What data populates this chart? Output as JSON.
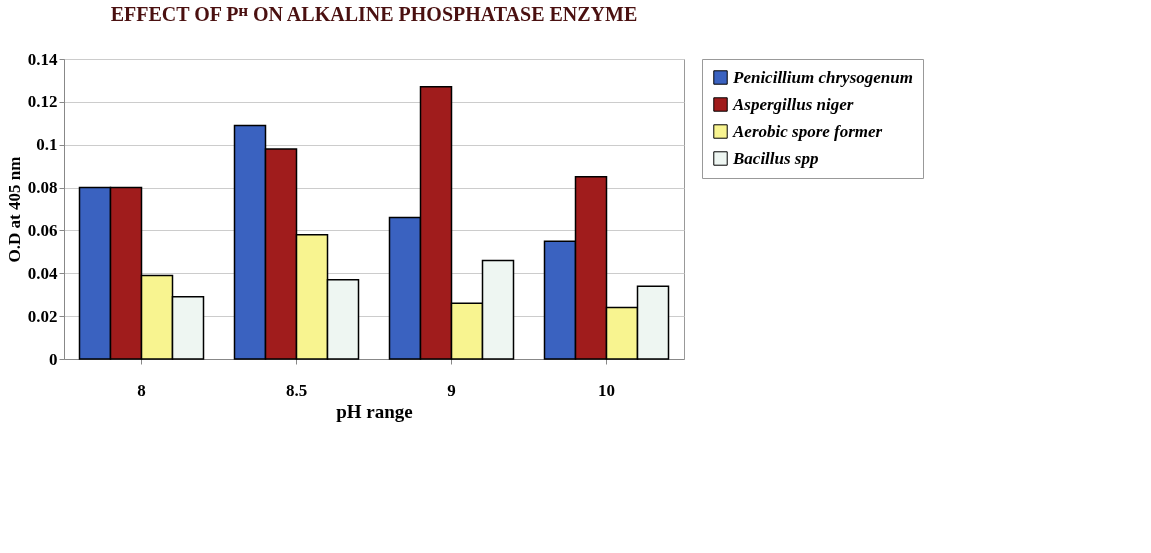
{
  "chart_data": {
    "type": "bar",
    "title": "EFFECT OF Pᴴ ON ALKALINE PHOSPHATASE ENZYME",
    "xlabel": "pH range",
    "ylabel": "O.D at 405 nm",
    "categories": [
      "8",
      "8.5",
      "9",
      "10"
    ],
    "series": [
      {
        "name": "Penicillium chrysogenum",
        "color": "#3a62c0",
        "values": [
          0.08,
          0.109,
          0.066,
          0.055
        ]
      },
      {
        "name": "Aspergillus niger",
        "color": "#a01c1c",
        "values": [
          0.08,
          0.098,
          0.127,
          0.085
        ]
      },
      {
        "name": "Aerobic spore former",
        "color": "#f8f490",
        "values": [
          0.039,
          0.058,
          0.026,
          0.024
        ]
      },
      {
        "name": "Bacillus spp",
        "color": "#eef6f2",
        "values": [
          0.029,
          0.037,
          0.046,
          0.034
        ]
      }
    ],
    "ylim": [
      0,
      0.14
    ],
    "yticks": [
      0,
      0.02,
      0.04,
      0.06,
      0.08,
      0.1,
      0.12,
      0.14
    ],
    "grid": "y",
    "legend": "right"
  }
}
